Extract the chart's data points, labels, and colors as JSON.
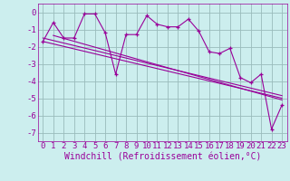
{
  "xlabel": "Windchill (Refroidissement éolien,°C)",
  "x_values": [
    0,
    1,
    2,
    3,
    4,
    5,
    6,
    7,
    8,
    9,
    10,
    11,
    12,
    13,
    14,
    15,
    16,
    17,
    18,
    19,
    20,
    21,
    22,
    23
  ],
  "y_main": [
    -1.7,
    -0.6,
    -1.5,
    -1.5,
    -0.1,
    -0.1,
    -1.2,
    -3.6,
    -1.3,
    -1.3,
    -0.2,
    -0.7,
    -0.85,
    -0.85,
    -0.4,
    -1.1,
    -2.3,
    -2.4,
    -2.1,
    -3.8,
    -4.1,
    -3.6,
    -6.8,
    -5.4
  ],
  "trend_lines": [
    [
      [
        0,
        -1.5
      ],
      [
        23,
        -4.85
      ]
    ],
    [
      [
        1,
        -1.35
      ],
      [
        23,
        -5.1
      ]
    ],
    [
      [
        0,
        -1.7
      ],
      [
        23,
        -5.0
      ]
    ]
  ],
  "ylim": [
    -7.5,
    0.5
  ],
  "xlim": [
    -0.5,
    23.5
  ],
  "yticks": [
    0,
    -1,
    -2,
    -3,
    -4,
    -5,
    -6,
    -7
  ],
  "xticks": [
    0,
    1,
    2,
    3,
    4,
    5,
    6,
    7,
    8,
    9,
    10,
    11,
    12,
    13,
    14,
    15,
    16,
    17,
    18,
    19,
    20,
    21,
    22,
    23
  ],
  "line_color": "#990099",
  "bg_color": "#cceeee",
  "grid_color": "#99bbbb",
  "font_size": 6.5,
  "label_font_size": 7
}
